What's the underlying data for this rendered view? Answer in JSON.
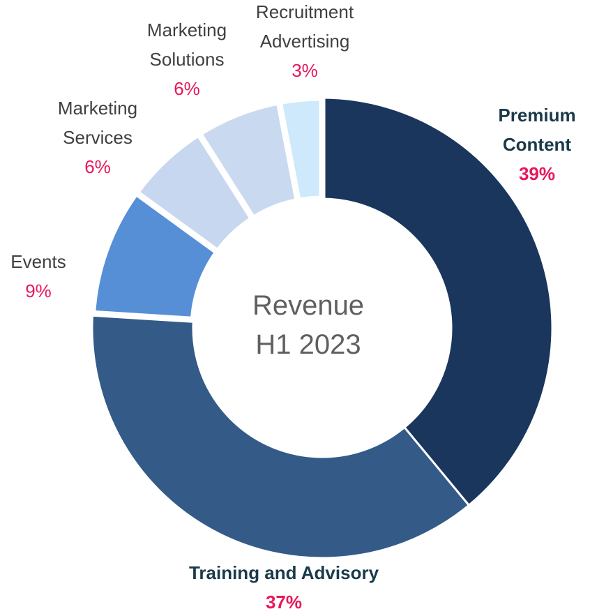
{
  "chart_data": {
    "type": "donut",
    "center_label": "Revenue H1 2023",
    "categories": [
      "Premium Content",
      "Training and Advisory",
      "Events",
      "Marketing Services",
      "Marketing Solutions",
      "Recruitment Advertising"
    ],
    "values": [
      39,
      37,
      9,
      6,
      6,
      3
    ],
    "value_labels": [
      "39%",
      "37%",
      "9%",
      "6%",
      "6%",
      "3%"
    ],
    "colors": [
      "#1a365d",
      "#345a87",
      "#568fd6",
      "#c6d7ef",
      "#c9daf0",
      "#cde9fb"
    ]
  }
}
